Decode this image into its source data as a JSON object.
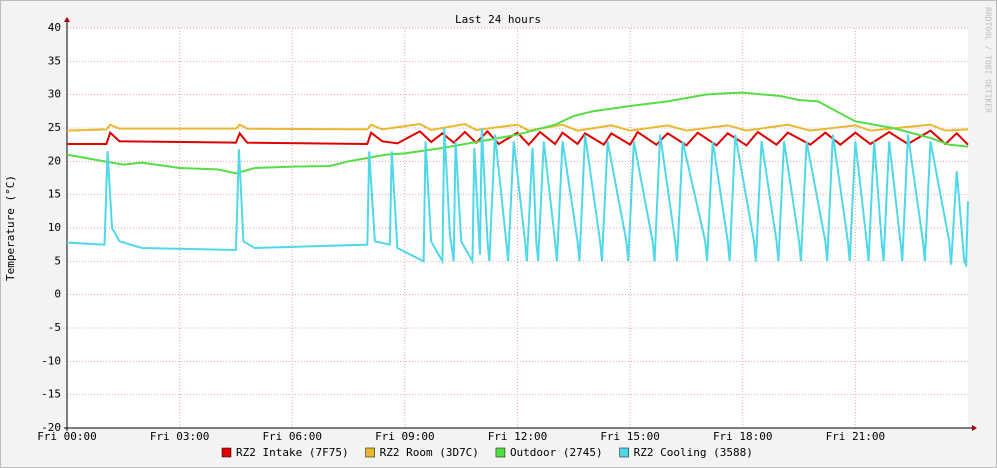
{
  "chart_data": {
    "type": "line",
    "title": "Last 24 hours",
    "y_label": "Temperature (°C)",
    "watermark": "RRDTOOL / TOBI OETIKER",
    "xlim": [
      0,
      24
    ],
    "xticks": [
      {
        "value": 0,
        "label": "Fri 00:00"
      },
      {
        "value": 3,
        "label": "Fri 03:00"
      },
      {
        "value": 6,
        "label": "Fri 06:00"
      },
      {
        "value": 9,
        "label": "Fri 09:00"
      },
      {
        "value": 12,
        "label": "Fri 12:00"
      },
      {
        "value": 15,
        "label": "Fri 15:00"
      },
      {
        "value": 18,
        "label": "Fri 18:00"
      },
      {
        "value": 21,
        "label": "Fri 21:00"
      }
    ],
    "ylim": [
      -20,
      40
    ],
    "yticks": [
      -20,
      -15,
      -10,
      -5,
      0,
      5,
      10,
      15,
      20,
      25,
      30,
      35,
      40
    ],
    "grid": true,
    "series": [
      {
        "name": "RZ2 Intake (7F75)",
        "color": "#e00000",
        "x": [
          0,
          1.05,
          1.15,
          1.4,
          4.5,
          4.6,
          4.8,
          8.0,
          8.1,
          8.4,
          8.8,
          9.4,
          9.7,
          10.0,
          10.3,
          10.6,
          10.9,
          11.2,
          11.5,
          12.0,
          12.3,
          12.6,
          13.0,
          13.2,
          13.6,
          13.8,
          14.3,
          14.5,
          15.0,
          15.2,
          15.7,
          16.0,
          16.5,
          16.8,
          17.3,
          17.6,
          18.1,
          18.4,
          18.9,
          19.2,
          19.8,
          20.2,
          20.6,
          21.0,
          21.4,
          21.9,
          22.4,
          23.0,
          23.4,
          23.7,
          24
        ],
        "values": [
          22.6,
          22.6,
          24.3,
          23,
          22.8,
          24.2,
          22.8,
          22.6,
          24.3,
          23,
          22.7,
          24.5,
          22.9,
          24.2,
          22.8,
          24.4,
          22.8,
          24.5,
          22.6,
          24.3,
          22.5,
          24.4,
          22.6,
          24.3,
          22.6,
          24.2,
          22.5,
          24.2,
          22.5,
          24.4,
          22.5,
          24.2,
          22.4,
          24.3,
          22.4,
          24.2,
          22.4,
          24.4,
          22.5,
          24.3,
          22.5,
          24.3,
          22.5,
          24.3,
          22.6,
          24.4,
          22.6,
          24.6,
          22.6,
          24.2,
          22.5
        ]
      },
      {
        "name": "RZ2 Room (3D7C)",
        "color": "#e8b830",
        "x": [
          0,
          1.05,
          1.15,
          1.4,
          4.5,
          4.6,
          4.8,
          8.0,
          8.1,
          8.4,
          9.4,
          9.7,
          10.6,
          10.9,
          12.0,
          12.3,
          13.2,
          13.6,
          14.5,
          15.0,
          16.0,
          16.5,
          17.6,
          18.1,
          19.2,
          19.8,
          21.0,
          21.4,
          23.0,
          23.4,
          24
        ],
        "values": [
          24.6,
          24.8,
          25.5,
          24.9,
          24.9,
          25.5,
          24.9,
          24.8,
          25.5,
          24.8,
          25.6,
          24.7,
          25.6,
          24.7,
          25.5,
          24.6,
          25.5,
          24.6,
          25.4,
          24.6,
          25.4,
          24.6,
          25.4,
          24.6,
          25.5,
          24.6,
          25.4,
          24.6,
          25.5,
          24.6,
          24.8
        ]
      },
      {
        "name": "Outdoor (2745)",
        "color": "#55dd44",
        "x": [
          0,
          0.5,
          1,
          1.5,
          2,
          3,
          4,
          4.5,
          5,
          6,
          7,
          7.5,
          8,
          8.5,
          9,
          10,
          11,
          12,
          13,
          13.5,
          14,
          15,
          16,
          17,
          17.5,
          18,
          19,
          19.5,
          20,
          20.5,
          21,
          22,
          23,
          23.5,
          24
        ],
        "values": [
          21,
          20.5,
          20,
          19.5,
          19.8,
          19,
          18.8,
          18.2,
          19,
          19.2,
          19.3,
          20,
          20.5,
          21,
          21.2,
          22,
          23,
          24,
          25.5,
          26.8,
          27.5,
          28.3,
          29,
          30,
          30.2,
          30.3,
          29.8,
          29.2,
          29,
          27.5,
          26,
          25,
          23.5,
          22.5,
          22.2
        ]
      },
      {
        "name": "RZ2 Cooling (3588)",
        "color": "#4fd8e8",
        "x": [
          0,
          1.0,
          1.08,
          1.2,
          1.4,
          2,
          4.5,
          4.58,
          4.7,
          5,
          8.0,
          8.05,
          8.2,
          8.6,
          8.65,
          8.8,
          9.5,
          9.55,
          9.7,
          10.0,
          10.05,
          10.2,
          10.3,
          10.35,
          10.5,
          10.8,
          10.85,
          11.0,
          11.05,
          11.2,
          11.25,
          11.4,
          11.7,
          11.75,
          11.9,
          12.2,
          12.25,
          12.4,
          12.5,
          12.55,
          12.7,
          13.0,
          13.05,
          13.2,
          13.6,
          13.65,
          13.8,
          14.2,
          14.25,
          14.4,
          14.9,
          14.95,
          15.1,
          15.6,
          15.65,
          15.8,
          16.2,
          16.25,
          16.4,
          17.0,
          17.05,
          17.2,
          17.6,
          17.65,
          17.8,
          18.3,
          18.35,
          18.5,
          18.9,
          18.95,
          19.1,
          19.5,
          19.55,
          19.7,
          20.2,
          20.25,
          20.4,
          20.8,
          20.85,
          21.0,
          21.3,
          21.35,
          21.5,
          21.7,
          21.75,
          21.9,
          22.2,
          22.25,
          22.4,
          22.8,
          22.85,
          23.0,
          23.5,
          23.55,
          23.7,
          23.9,
          23.95,
          24
        ],
        "values": [
          7.8,
          7.5,
          21.5,
          10,
          8,
          7,
          6.7,
          21.8,
          8,
          7,
          7.5,
          21.5,
          8,
          7.5,
          21.5,
          7,
          5,
          23,
          8,
          5,
          25,
          9,
          5,
          23,
          8,
          5,
          22,
          6,
          25,
          8,
          5,
          24,
          8,
          5,
          23,
          8,
          5,
          22,
          8,
          5,
          23,
          8,
          5,
          23,
          8,
          5,
          24,
          8,
          5,
          23,
          8,
          5,
          23,
          8,
          5,
          24,
          8,
          5,
          23,
          8,
          5,
          23,
          8,
          5,
          24,
          8,
          5,
          23,
          8,
          5,
          23,
          8,
          5,
          23,
          8,
          5,
          24,
          8,
          5,
          23,
          8,
          5,
          23,
          8,
          5,
          23,
          8,
          5,
          24,
          8,
          5,
          23,
          8,
          4.5,
          18.5,
          5,
          4.5,
          14
        ]
      }
    ]
  }
}
